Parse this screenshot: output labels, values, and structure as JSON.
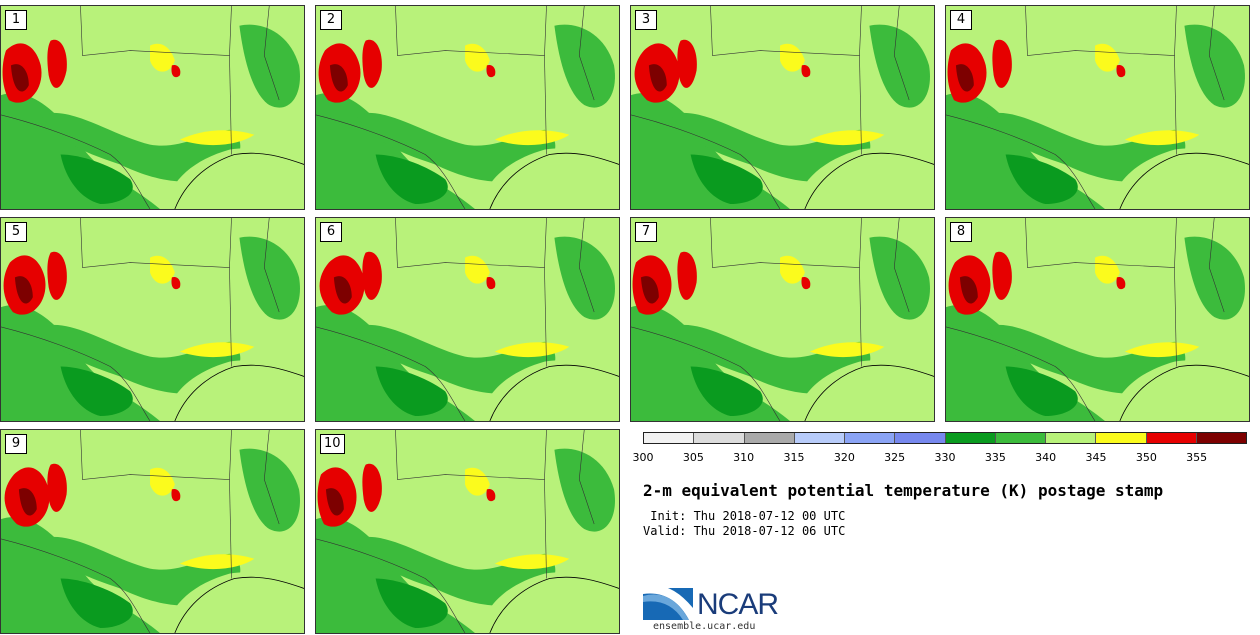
{
  "panels": [
    {
      "number": "1"
    },
    {
      "number": "2"
    },
    {
      "number": "3"
    },
    {
      "number": "4"
    },
    {
      "number": "5"
    },
    {
      "number": "6"
    },
    {
      "number": "7"
    },
    {
      "number": "8"
    },
    {
      "number": "9"
    },
    {
      "number": "10"
    }
  ],
  "colorbar": {
    "colors": [
      "#f2f2f2",
      "#dcdcdc",
      "#aaaaaa",
      "#b8ccfa",
      "#8ba4f5",
      "#7788ee",
      "#0a9b1f",
      "#3cbb3c",
      "#b8f27a",
      "#fbfb1d",
      "#e60000",
      "#7d0000"
    ],
    "ticks": [
      "300",
      "305",
      "310",
      "315",
      "320",
      "325",
      "330",
      "335",
      "340",
      "345",
      "350",
      "355"
    ]
  },
  "title": "2-m equivalent potential temperature (K) postage stamp",
  "init": " Init: Thu 2018-07-12 00 UTC",
  "valid": "Valid: Thu 2018-07-12 06 UTC",
  "logo": {
    "text": "NCAR",
    "url": "ensemble.ucar.edu",
    "color": "#1a3c7a"
  }
}
